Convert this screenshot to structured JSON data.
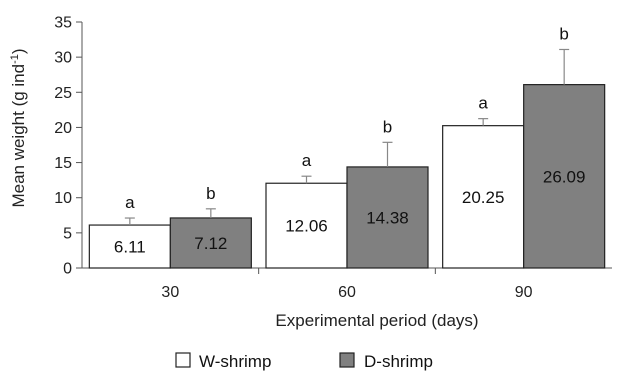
{
  "chart_data": {
    "type": "bar",
    "title": "",
    "xlabel": "Experimental period (days)",
    "ylabel": "Mean weight (g ind-1)",
    "ylabel_main": "Mean weight (g ind",
    "ylabel_sup": "-1",
    "ylabel_close": ")",
    "ylim": [
      0,
      35
    ],
    "yticks": [
      "0",
      "5",
      "10",
      "15",
      "20",
      "25",
      "30",
      "35"
    ],
    "categories": [
      "30",
      "60",
      "90"
    ],
    "legend_position": "bottom",
    "grid": false,
    "series": [
      {
        "name": "W-shrimp",
        "color": "#ffffff",
        "values": [
          6.11,
          12.06,
          20.25
        ],
        "value_labels": [
          "6.11",
          "12.06",
          "20.25"
        ],
        "errors": [
          1.0,
          1.0,
          1.0
        ],
        "letters": [
          "a",
          "a",
          "a"
        ]
      },
      {
        "name": "D-shrimp",
        "color": "#808080",
        "values": [
          7.12,
          14.38,
          26.09
        ],
        "value_labels": [
          "7.12",
          "14.38",
          "26.09"
        ],
        "errors": [
          1.3,
          3.5,
          5.0
        ],
        "letters": [
          "b",
          "b",
          "b"
        ]
      }
    ]
  }
}
